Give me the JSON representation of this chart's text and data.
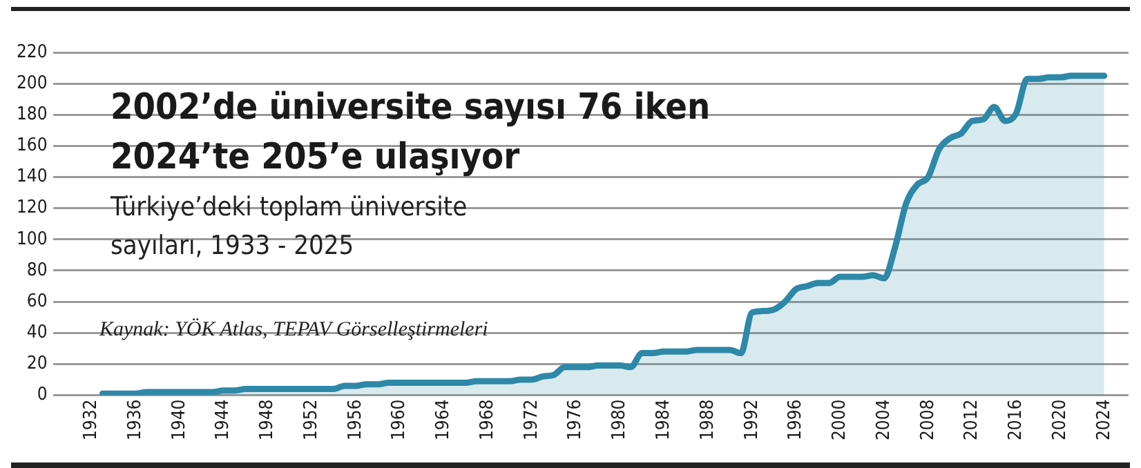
{
  "chart_data": {
    "type": "area",
    "title": "2002’de üniversite sayısı 76 iken 2024’te 205’e ulaşıyor",
    "subtitle": "Türkiye’deki toplam üniversite sayıları, 1933 - 2025",
    "annotations": [
      "Kaynak: YÖK Atlas, TEPAV Görselleştirmeleri"
    ],
    "x": [
      1933,
      1934,
      1935,
      1936,
      1937,
      1938,
      1939,
      1940,
      1941,
      1942,
      1943,
      1944,
      1945,
      1946,
      1947,
      1948,
      1949,
      1950,
      1951,
      1952,
      1953,
      1954,
      1955,
      1956,
      1957,
      1958,
      1959,
      1960,
      1961,
      1962,
      1963,
      1964,
      1965,
      1966,
      1967,
      1968,
      1969,
      1970,
      1971,
      1972,
      1973,
      1974,
      1975,
      1976,
      1977,
      1978,
      1979,
      1980,
      1981,
      1982,
      1983,
      1984,
      1985,
      1986,
      1987,
      1988,
      1989,
      1990,
      1991,
      1992,
      1993,
      1994,
      1995,
      1996,
      1997,
      1998,
      1999,
      2000,
      2001,
      2002,
      2003,
      2004,
      2005,
      2006,
      2007,
      2008,
      2009,
      2010,
      2011,
      2012,
      2013,
      2014,
      2015,
      2016,
      2017,
      2018,
      2019,
      2020,
      2021,
      2022,
      2023,
      2024
    ],
    "series": [
      {
        "color": "#2e88a8",
        "values": [
          1,
          1,
          1,
          1,
          2,
          2,
          2,
          2,
          2,
          2,
          2,
          3,
          3,
          4,
          4,
          4,
          4,
          4,
          4,
          4,
          4,
          4,
          6,
          6,
          7,
          7,
          8,
          8,
          8,
          8,
          8,
          8,
          8,
          8,
          9,
          9,
          9,
          9,
          10,
          10,
          12,
          13,
          18,
          18,
          18,
          19,
          19,
          19,
          18,
          27,
          27,
          28,
          28,
          28,
          29,
          29,
          29,
          29,
          27,
          53,
          54,
          55,
          60,
          68,
          70,
          72,
          72,
          76,
          76,
          76,
          77,
          75,
          95,
          123,
          135,
          140,
          158,
          165,
          168,
          176,
          177,
          185,
          176,
          181,
          203,
          203,
          204,
          204,
          205,
          205,
          205,
          205
        ]
      }
    ],
    "xlim": [
      1928.5,
      2026.2
    ],
    "xticks": [
      1932,
      1936,
      1940,
      1944,
      1948,
      1952,
      1956,
      1960,
      1964,
      1968,
      1972,
      1976,
      1980,
      1984,
      1988,
      1992,
      1996,
      2000,
      2004,
      2008,
      2012,
      2016,
      2020,
      2024
    ],
    "ylim": [
      0,
      220
    ],
    "yticks": [
      0,
      20,
      40,
      60,
      80,
      100,
      120,
      140,
      160,
      180,
      200,
      220
    ],
    "grid": "y",
    "legend": false,
    "marker": "none",
    "line_style": "solid"
  }
}
